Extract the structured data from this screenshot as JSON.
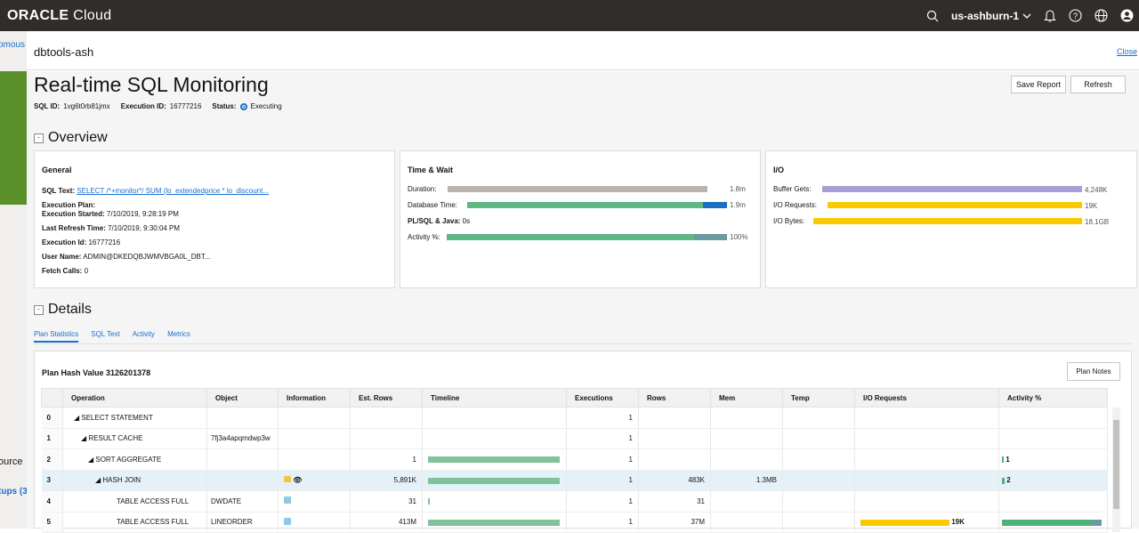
{
  "topbar": {
    "brand_bold": "ORACLE",
    "brand_light": " Cloud",
    "region": "us-ashburn-1",
    "icons": [
      "search-icon",
      "chevron-down-icon",
      "bell-icon",
      "help-icon",
      "globe-icon",
      "user-icon"
    ]
  },
  "background": {
    "left_texts": [
      "omous",
      "ource",
      "tups (3"
    ]
  },
  "panel": {
    "title": "dbtools-ash",
    "close_label": "Close"
  },
  "page": {
    "title": "Real-time SQL Monitoring",
    "sql_id_label": "SQL ID:",
    "sql_id": "1vg6t0rb81jmx",
    "execution_id_label": "Execution ID:",
    "execution_id": "16777216",
    "status_label": "Status:",
    "status": "Executing",
    "save_report": "Save Report",
    "refresh": "Refresh"
  },
  "overview": {
    "section_title": "Overview",
    "general": {
      "title": "General",
      "sql_text_label": "SQL Text:",
      "sql_text": "SELECT /*+monitor*/ SUM (lo_extendedprice * lo_discount...",
      "execution_plan_label": "Execution Plan:",
      "execution_started_label": "Execution Started:",
      "execution_started": "7/10/2019, 9:28:19 PM",
      "last_refresh_label": "Last Refresh Time:",
      "last_refresh": "7/10/2019, 9:30:04 PM",
      "execution_id_label": "Execution Id:",
      "execution_id": "16777216",
      "user_name_label": "User Name:",
      "user_name": "ADMIN@DKEDQBJWMVBGA0L_DBT...",
      "fetch_calls_label": "Fetch Calls:",
      "fetch_calls": "0"
    },
    "time_wait": {
      "title": "Time & Wait",
      "duration_label": "Duration:",
      "duration": "1.8m",
      "db_time_label": "Database Time:",
      "db_time": "1.9m",
      "plsql_label": "PL/SQL & Java:",
      "plsql": "0s",
      "activity_label": "Activity %:",
      "activity": "100%",
      "colors": {
        "duration": "#bcb3ad",
        "db_green": "#5fb884",
        "db_blue": "#1b6fc2",
        "act_green": "#5fb884",
        "act_teal": "#6a9ba0"
      }
    },
    "io": {
      "title": "I/O",
      "buffer_gets_label": "Buffer Gets:",
      "buffer_gets": "4,248K",
      "io_requests_label": "I/O Requests:",
      "io_requests": "19K",
      "io_bytes_label": "I/O Bytes:",
      "io_bytes": "18.1GB",
      "colors": {
        "buffer": "#a79fd6",
        "io": "#fcc900"
      }
    }
  },
  "details": {
    "section_title": "Details",
    "tabs": [
      "Plan Statistics",
      "SQL Text",
      "Activity",
      "Metrics"
    ],
    "plan_hash_label": "Plan Hash Value 3126201378",
    "plan_notes": "Plan Notes",
    "columns": [
      "",
      "Operation",
      "Object",
      "Information",
      "Est. Rows",
      "Timeline",
      "Executions",
      "Rows",
      "Mem",
      "Temp",
      "I/O Requests",
      "Activity %"
    ],
    "rows": [
      {
        "idx": "0",
        "operation": "◢ SELECT STATEMENT",
        "object": "",
        "est_rows": "",
        "executions": "1",
        "rows": "",
        "mem": "",
        "temp": "",
        "io": "",
        "activity": ""
      },
      {
        "idx": "1",
        "operation": "◢ RESULT CACHE",
        "object": "7fj3a4apqmdwp3w",
        "est_rows": "",
        "executions": "1",
        "rows": "",
        "mem": "",
        "temp": "",
        "io": "",
        "activity": ""
      },
      {
        "idx": "2",
        "operation": "◢ SORT AGGREGATE",
        "object": "",
        "est_rows": "1",
        "executions": "1",
        "rows": "",
        "mem": "",
        "temp": "",
        "io": "",
        "activity": "1"
      },
      {
        "idx": "3",
        "operation": "◢ HASH JOIN",
        "object": "",
        "est_rows": "5,891K",
        "executions": "1",
        "rows": "483K",
        "mem": "1.3MB",
        "temp": "",
        "io": "",
        "activity": "2"
      },
      {
        "idx": "4",
        "operation": "TABLE ACCESS FULL",
        "object": "DWDATE",
        "est_rows": "31",
        "executions": "1",
        "rows": "31",
        "mem": "",
        "temp": "",
        "io": "",
        "activity": ""
      },
      {
        "idx": "5",
        "operation": "TABLE ACCESS FULL",
        "object": "LINEORDER",
        "est_rows": "413M",
        "executions": "1",
        "rows": "37M",
        "mem": "",
        "temp": "",
        "io": "19K",
        "activity": ""
      }
    ]
  }
}
